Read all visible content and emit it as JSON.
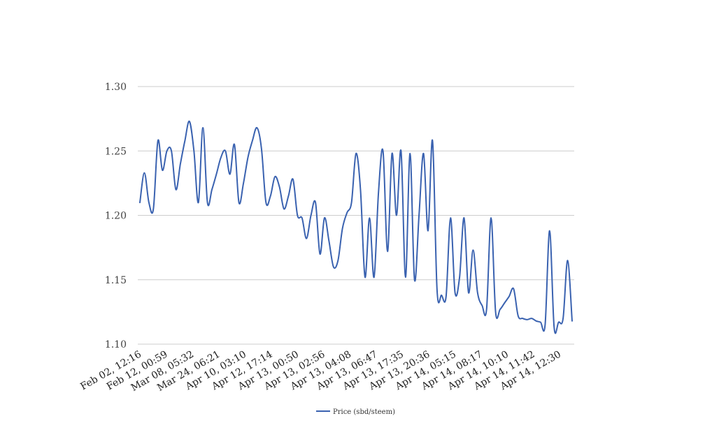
{
  "chart_data": {
    "type": "line",
    "title": "",
    "xlabel": "",
    "ylabel": "",
    "ylim": [
      1.1,
      1.3
    ],
    "y_ticks": [
      "1.10",
      "1.15",
      "1.20",
      "1.25",
      "1.30"
    ],
    "x_tick_labels": [
      "Feb 02, 12:16",
      "Feb 12, 00:59",
      "Mar 08, 05:32",
      "Mar 24, 06:21",
      "Apr 10, 03:10",
      "Apr 12, 17:14",
      "Apr 13, 00:50",
      "Apr 13, 02:56",
      "Apr 13, 04:08",
      "Apr 13, 06:47",
      "Apr 13, 17:35",
      "Apr 13, 20:36",
      "Apr 14, 05:15",
      "Apr 14, 08:17",
      "Apr 14, 10:10",
      "Apr 14, 11:42",
      "Apr 14, 12:30"
    ],
    "grid": true,
    "legend_position": "bottom",
    "series": [
      {
        "name": "Price (sbd/steem)",
        "color": "#3a62b0",
        "values": [
          1.21,
          1.233,
          1.21,
          1.205,
          1.258,
          1.235,
          1.25,
          1.25,
          1.22,
          1.24,
          1.258,
          1.273,
          1.25,
          1.21,
          1.268,
          1.21,
          1.22,
          1.232,
          1.245,
          1.25,
          1.232,
          1.255,
          1.21,
          1.225,
          1.245,
          1.258,
          1.268,
          1.252,
          1.21,
          1.215,
          1.23,
          1.222,
          1.205,
          1.215,
          1.228,
          1.2,
          1.198,
          1.182,
          1.2,
          1.21,
          1.17,
          1.198,
          1.18,
          1.16,
          1.165,
          1.19,
          1.202,
          1.21,
          1.248,
          1.22,
          1.152,
          1.198,
          1.152,
          1.218,
          1.25,
          1.172,
          1.248,
          1.2,
          1.25,
          1.152,
          1.248,
          1.15,
          1.2,
          1.248,
          1.188,
          1.258,
          1.142,
          1.138,
          1.137,
          1.198,
          1.14,
          1.152,
          1.198,
          1.14,
          1.173,
          1.14,
          1.13,
          1.127,
          1.198,
          1.125,
          1.127,
          1.132,
          1.137,
          1.143,
          1.122,
          1.12,
          1.119,
          1.12,
          1.118,
          1.117,
          1.115,
          1.188,
          1.113,
          1.117,
          1.12,
          1.165,
          1.118
        ]
      }
    ]
  }
}
